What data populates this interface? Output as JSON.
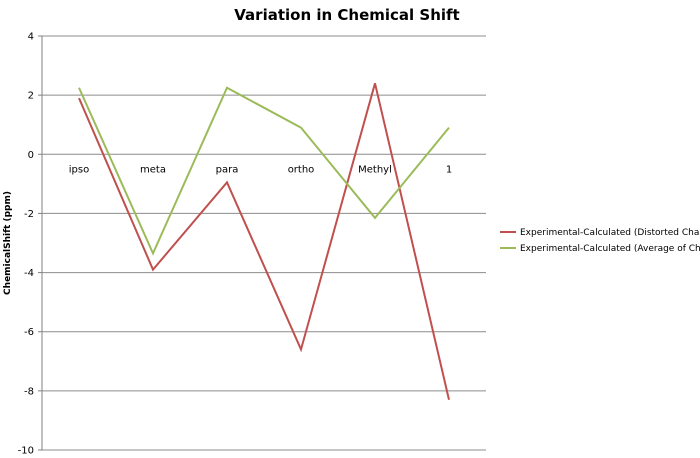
{
  "chart_data": {
    "type": "line",
    "title": "Variation in Chemical Shift",
    "xlabel": "",
    "ylabel": "ChemicalShift (ppm)",
    "categories": [
      "ipso",
      "meta",
      "para",
      "ortho",
      "Methyl",
      "1"
    ],
    "ylim": [
      -10,
      4
    ],
    "yticks": [
      4,
      2,
      0,
      -2,
      -4,
      -6,
      -8,
      -10
    ],
    "grid": true,
    "legend_position": "right",
    "series": [
      {
        "name": "Experimental-Calculated (Distorted Chair)",
        "color": "#c0504d",
        "values": [
          1.9,
          -3.9,
          -0.95,
          -6.6,
          2.4,
          -8.3
        ]
      },
      {
        "name": "Experimental-Calculated (Average of Chair)",
        "color": "#9bbb59",
        "values": [
          2.25,
          -3.35,
          2.25,
          0.9,
          -2.15,
          0.9
        ]
      }
    ]
  }
}
